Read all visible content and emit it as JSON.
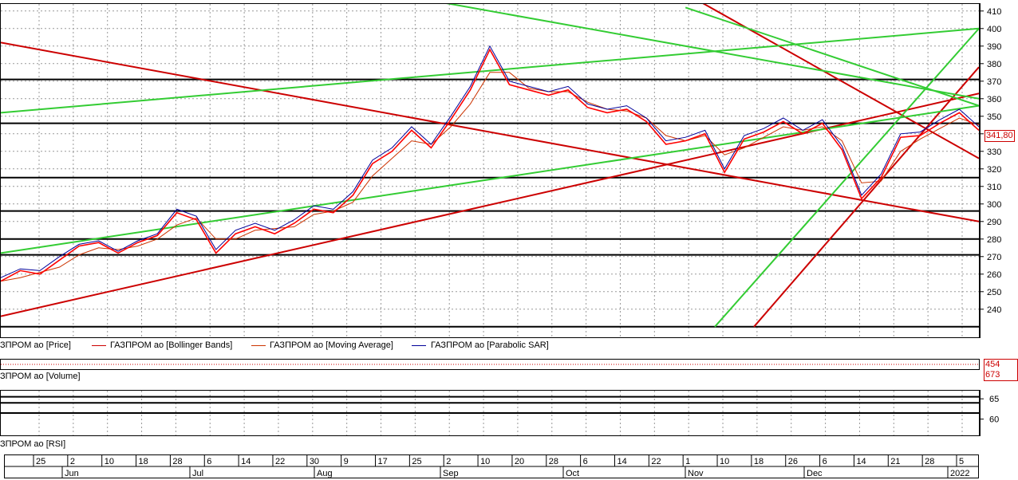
{
  "colors": {
    "price": "#ff0000",
    "bollinger": "#cc0000",
    "ma": "#cc3300",
    "sar": "#000099",
    "support": "#000000",
    "trend_green": "#33cc33",
    "trend_red": "#cc0000"
  },
  "price_panel": {
    "last_label": "341,80",
    "legend": [
      {
        "label": "ЗПРОМ ао [Price]",
        "color": "#ff0000"
      },
      {
        "label": "ГАЗПРОМ ао [Bollinger Bands]",
        "color": "#cc0000"
      },
      {
        "label": "ГАЗПРОМ ао [Moving Average]",
        "color": "#cc3300"
      },
      {
        "label": "ГАЗПРОМ ао [Parabolic SAR]",
        "color": "#000099"
      }
    ]
  },
  "volume_panel": {
    "last_label": "454 673",
    "legend": "ЗПРОМ ао [Volume]"
  },
  "rsi_panel": {
    "legend": "ЗПРОМ ао [RSI]"
  },
  "time_axis": {
    "days": [
      "25",
      "2",
      "10",
      "18",
      "28",
      "6",
      "14",
      "22",
      "30",
      "9",
      "17",
      "25",
      "2",
      "10",
      "20",
      "28",
      "6",
      "14",
      "22",
      "1",
      "10",
      "18",
      "26",
      "6",
      "14",
      "21",
      "28",
      "5"
    ],
    "months": [
      "Jun",
      "Jul",
      "Aug",
      "Sep",
      "Oct",
      "Nov",
      "Dec",
      "2022"
    ]
  },
  "chart_data": [
    {
      "type": "line",
      "title": "",
      "xlabel": "",
      "ylabel": "",
      "ylim": [
        224,
        414
      ],
      "y_ticks": [
        240,
        250,
        260,
        270,
        280,
        290,
        300,
        310,
        320,
        330,
        340,
        350,
        360,
        370,
        380,
        390,
        400,
        410
      ],
      "x_index_range": [
        0,
        200
      ],
      "grid": true,
      "legend_placement": "bottom",
      "series": [
        {
          "name": "ГАЗПРОМ ао [Price]",
          "x": [
            0,
            4,
            8,
            12,
            16,
            20,
            24,
            28,
            32,
            36,
            40,
            44,
            48,
            52,
            56,
            60,
            64,
            68,
            72,
            76,
            80,
            84,
            88,
            92,
            96,
            100,
            104,
            108,
            112,
            116,
            120,
            124,
            128,
            132,
            136,
            140,
            144,
            148,
            152,
            156,
            160,
            164,
            168,
            172,
            176,
            180,
            184,
            188,
            192,
            196,
            200
          ],
          "y": [
            256,
            262,
            260,
            268,
            276,
            278,
            272,
            278,
            282,
            295,
            291,
            272,
            283,
            287,
            283,
            289,
            297,
            295,
            305,
            323,
            330,
            342,
            332,
            348,
            365,
            388,
            368,
            365,
            362,
            365,
            355,
            352,
            354,
            347,
            334,
            336,
            340,
            318,
            337,
            341,
            347,
            340,
            346,
            331,
            303,
            315,
            338,
            339,
            346,
            352,
            342
          ]
        },
        {
          "name": "ГАЗПРОМ ао [Moving Average]",
          "x": [
            0,
            4,
            8,
            12,
            16,
            20,
            24,
            28,
            32,
            36,
            40,
            44,
            48,
            52,
            56,
            60,
            64,
            68,
            72,
            76,
            80,
            84,
            88,
            92,
            96,
            100,
            104,
            108,
            112,
            116,
            120,
            124,
            128,
            132,
            136,
            140,
            144,
            148,
            152,
            156,
            160,
            164,
            168,
            172,
            176,
            180,
            184,
            188,
            192,
            196,
            200
          ],
          "y": [
            256,
            258,
            261,
            264,
            271,
            275,
            274,
            276,
            280,
            288,
            292,
            280,
            280,
            285,
            286,
            287,
            294,
            296,
            301,
            316,
            326,
            336,
            334,
            344,
            357,
            375,
            375,
            366,
            364,
            364,
            358,
            354,
            353,
            349,
            339,
            336,
            339,
            328,
            332,
            338,
            344,
            342,
            344,
            336,
            312,
            313,
            330,
            337,
            343,
            349,
            345
          ]
        },
        {
          "name": "ГАЗПРОМ ао [Parabolic SAR]",
          "x": [
            0,
            4,
            8,
            12,
            16,
            20,
            24,
            28,
            32,
            36,
            40,
            44,
            48,
            52,
            56,
            60,
            64,
            68,
            72,
            76,
            80,
            84,
            88,
            92,
            96,
            100,
            104,
            108,
            112,
            116,
            120,
            124,
            128,
            132,
            136,
            140,
            144,
            148,
            152,
            156,
            160,
            164,
            168,
            172,
            176,
            180,
            184,
            188,
            192,
            196,
            200
          ],
          "y": [
            258,
            263,
            262,
            270,
            277,
            279,
            273,
            279,
            283,
            297,
            293,
            274,
            285,
            289,
            285,
            291,
            299,
            297,
            307,
            325,
            332,
            344,
            334,
            350,
            367,
            390,
            370,
            367,
            364,
            367,
            357,
            354,
            356,
            349,
            336,
            338,
            342,
            320,
            339,
            343,
            349,
            342,
            348,
            333,
            305,
            317,
            340,
            341,
            348,
            354,
            344
          ]
        },
        {
          "name": "Support levels",
          "y": [
            230,
            271,
            280,
            296,
            315,
            346,
            371
          ]
        },
        {
          "name": "Green trendlines",
          "segments": [
            [
              [
                0,
                272
              ],
              [
                200,
                356
              ]
            ],
            [
              [
                80,
                420
              ],
              [
                200,
                360
              ]
            ],
            [
              [
                140,
                412
              ],
              [
                200,
                356
              ]
            ],
            [
              [
                0,
                352
              ],
              [
                200,
                400
              ]
            ],
            [
              [
                146,
                230
              ],
              [
                200,
                400
              ]
            ]
          ]
        },
        {
          "name": "Red trendlines",
          "segments": [
            [
              [
                0,
                392
              ],
              [
                200,
                290
              ]
            ],
            [
              [
                0,
                236
              ],
              [
                200,
                363
              ]
            ],
            [
              [
                140,
                420
              ],
              [
                200,
                326
              ]
            ],
            [
              [
                154,
                230
              ],
              [
                200,
                378
              ]
            ]
          ]
        }
      ]
    },
    {
      "type": "bar",
      "title": "",
      "series": [
        {
          "name": "ГАЗПРОМ ао [Volume]",
          "last": 454673
        }
      ]
    },
    {
      "type": "line",
      "title": "",
      "ylim": [
        56,
        67
      ],
      "y_ticks": [
        60,
        65
      ],
      "levels": [
        61.5,
        64,
        65.5
      ],
      "series": [
        {
          "name": "ГАЗПРОМ ао [RSI]"
        }
      ]
    }
  ]
}
